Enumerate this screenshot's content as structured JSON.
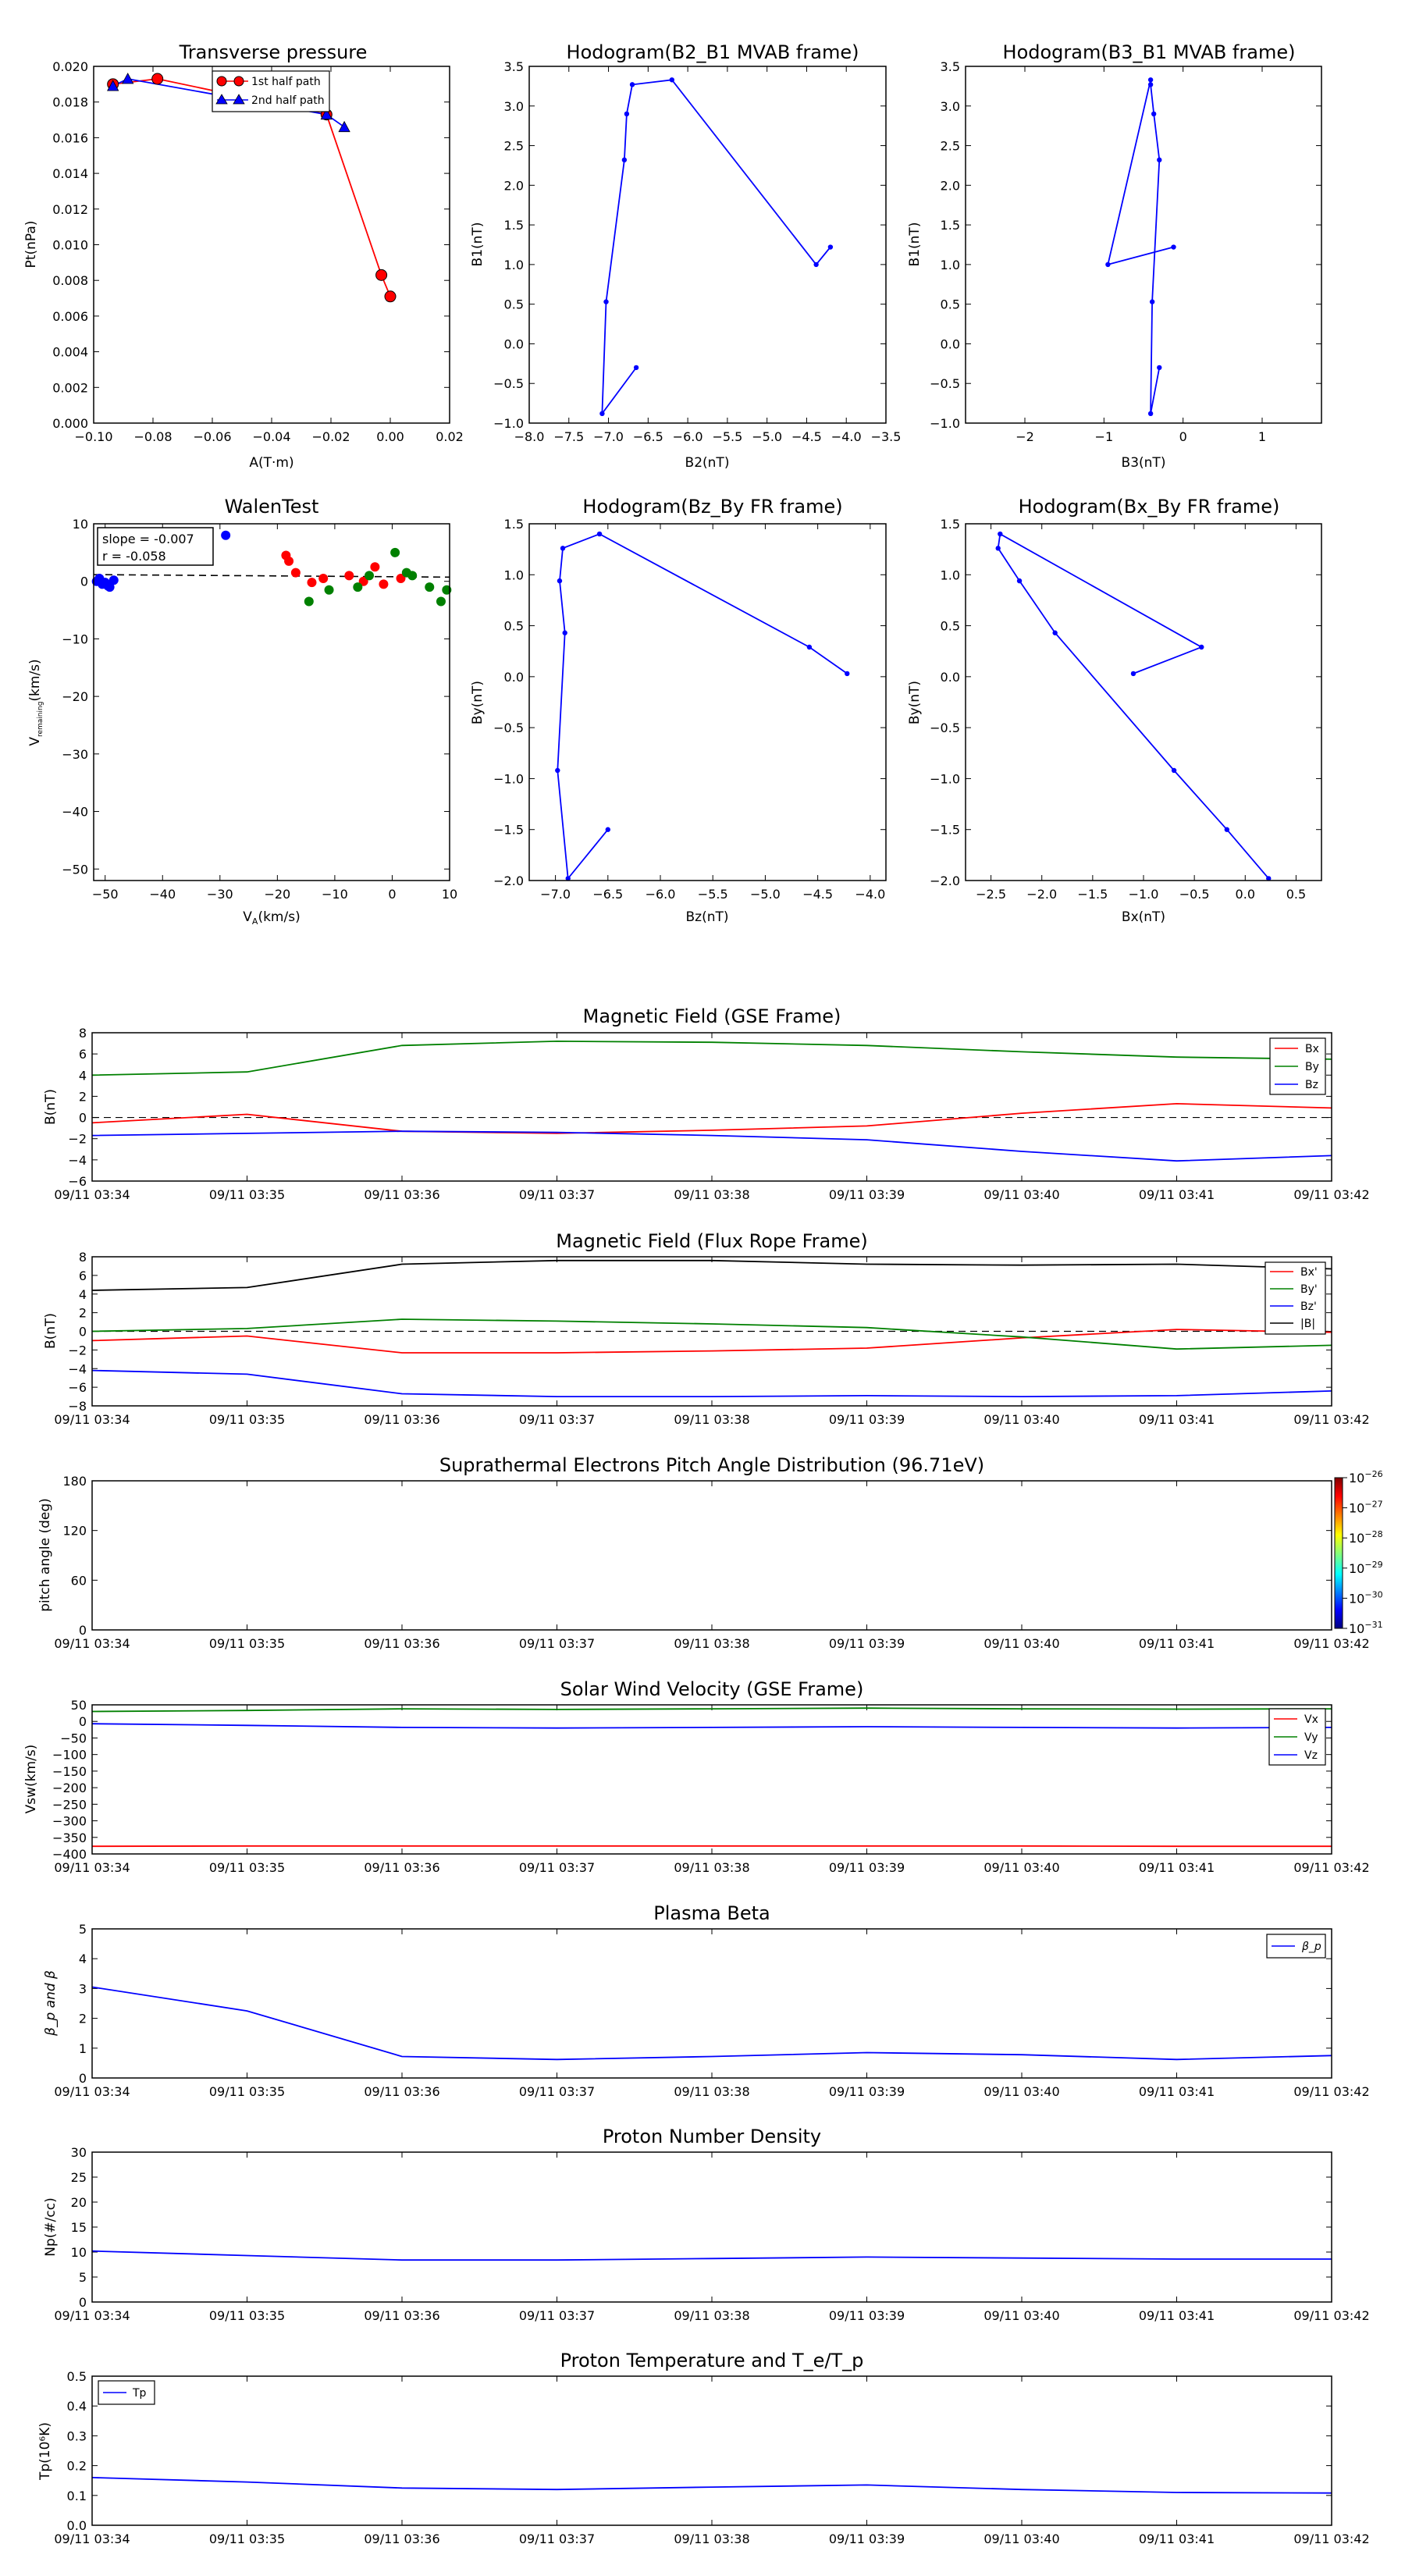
{
  "panels": {
    "transverse_pressure": {
      "title": "Transverse pressure",
      "xlabel": "A(T·m)",
      "ylabel": "Pt(nPa)",
      "xticks": [
        "−0.10",
        "−0.08",
        "−0.06",
        "−0.04",
        "−0.02",
        "0.00",
        "0.02"
      ],
      "yticks": [
        "0.000",
        "0.002",
        "0.004",
        "0.006",
        "0.008",
        "0.010",
        "0.012",
        "0.014",
        "0.016",
        "0.018",
        "0.020"
      ],
      "legend": [
        "1st half path",
        "2nd half path"
      ]
    },
    "hodo_b2b1": {
      "title": "Hodogram(B2_B1 MVAB frame)",
      "xlabel": "B2(nT)",
      "ylabel": "B1(nT)",
      "xticks": [
        "−8.0",
        "−7.5",
        "−7.0",
        "−6.5",
        "−6.0",
        "−5.5",
        "−5.0",
        "−4.5",
        "−4.0",
        "−3.5"
      ],
      "yticks": [
        "−1.0",
        "−0.5",
        "0.0",
        "0.5",
        "1.0",
        "1.5",
        "2.0",
        "2.5",
        "3.0",
        "3.5"
      ]
    },
    "hodo_b3b1": {
      "title": "Hodogram(B3_B1 MVAB frame)",
      "xlabel": "B3(nT)",
      "ylabel": "B1(nT)",
      "xticks": [
        "−2",
        "−1",
        "0",
        "1"
      ],
      "yticks": [
        "−1.0",
        "−0.5",
        "0.0",
        "0.5",
        "1.0",
        "1.5",
        "2.0",
        "2.5",
        "3.0",
        "3.5"
      ]
    },
    "walen": {
      "title": "WalenTest",
      "xlabel": "V",
      "xlabel_sub": "A",
      "xlabel_suffix": "(km/s)",
      "ylabel": "V",
      "ylabel_sub": "remaining",
      "ylabel_suffix": "(km/s)",
      "xticks": [
        "−50",
        "−40",
        "−30",
        "−20",
        "−10",
        "0",
        "10"
      ],
      "yticks": [
        "−50",
        "−40",
        "−30",
        "−20",
        "−10",
        "0",
        "10"
      ],
      "annot1": "slope = -0.007",
      "annot2": "r = -0.058"
    },
    "hodo_bzby": {
      "title": "Hodogram(Bz_By FR frame)",
      "xlabel": "Bz(nT)",
      "ylabel": "By(nT)",
      "xticks": [
        "−7.0",
        "−6.5",
        "−6.0",
        "−5.5",
        "−5.0",
        "−4.5",
        "−4.0"
      ],
      "yticks": [
        "−2.0",
        "−1.5",
        "−1.0",
        "−0.5",
        "0.0",
        "0.5",
        "1.0",
        "1.5"
      ]
    },
    "hodo_bxby": {
      "title": "Hodogram(Bx_By FR frame)",
      "xlabel": "Bx(nT)",
      "ylabel": "By(nT)",
      "xticks": [
        "−2.5",
        "−2.0",
        "−1.5",
        "−1.0",
        "−0.5",
        "0.0",
        "0.5"
      ],
      "yticks": [
        "−2.0",
        "−1.5",
        "−1.0",
        "−0.5",
        "0.0",
        "0.5",
        "1.0",
        "1.5"
      ]
    },
    "ts_times": [
      "09/11 03:34",
      "09/11 03:35",
      "09/11 03:36",
      "09/11 03:37",
      "09/11 03:38",
      "09/11 03:39",
      "09/11 03:40",
      "09/11 03:41",
      "09/11 03:42"
    ],
    "mag_gse": {
      "title": "Magnetic Field (GSE Frame)",
      "ylabel": "B(nT)",
      "yticks": [
        "−6",
        "−4",
        "−2",
        "0",
        "2",
        "4",
        "6",
        "8"
      ],
      "legend": [
        "Bx",
        "By",
        "Bz"
      ]
    },
    "mag_fr": {
      "title": "Magnetic Field (Flux Rope Frame)",
      "ylabel": "B(nT)",
      "yticks": [
        "−8",
        "−6",
        "−4",
        "−2",
        "0",
        "2",
        "4",
        "6",
        "8"
      ],
      "legend": [
        "Bx'",
        "By'",
        "Bz'",
        "|B|"
      ]
    },
    "pad": {
      "title": "Suprathermal Electrons Pitch Angle Distribution (96.71eV)",
      "ylabel": "pitch angle (deg)",
      "yticks": [
        "0",
        "60",
        "120",
        "180"
      ],
      "cbar_exps": [
        "-26",
        "-27",
        "-28",
        "-29",
        "-30",
        "-31"
      ]
    },
    "vsw": {
      "title": "Solar Wind Velocity (GSE Frame)",
      "ylabel": "Vsw(km/s)",
      "yticks": [
        "−400",
        "−350",
        "−300",
        "−250",
        "−200",
        "−150",
        "−100",
        "−50",
        "0",
        "50"
      ],
      "legend": [
        "Vx",
        "Vy",
        "Vz"
      ]
    },
    "beta": {
      "title": "Plasma Beta",
      "ylabel": "β_p and β",
      "yticks": [
        "0",
        "1",
        "2",
        "3",
        "4",
        "5"
      ],
      "legend": [
        "β_p"
      ]
    },
    "np": {
      "title": "Proton Number Density",
      "ylabel": "Np(#/cc)",
      "yticks": [
        "0",
        "5",
        "10",
        "15",
        "20",
        "25",
        "30"
      ]
    },
    "tp": {
      "title": "Proton Temperature and T_e/T_p",
      "ylabel": "Tp(10⁶K)",
      "yticks": [
        "0.0",
        "0.1",
        "0.2",
        "0.3",
        "0.4",
        "0.5"
      ],
      "legend": [
        "Tp"
      ]
    }
  },
  "colors": {
    "red": "#ff0000",
    "green": "#008000",
    "blue": "#0000ff",
    "black": "#000000"
  },
  "chart_data": [
    {
      "type": "line",
      "id": "transverse_pressure",
      "title": "Transverse pressure",
      "xlabel": "A(T·m)",
      "ylabel": "Pt(nPa)",
      "xlim": [
        -0.1,
        0.02
      ],
      "ylim": [
        0.0,
        0.02
      ],
      "series": [
        {
          "name": "1st half path",
          "x": [
            -0.0935,
            -0.0785,
            -0.0215,
            -0.003,
            0.0
          ],
          "y": [
            0.019,
            0.0193,
            0.0173,
            0.0083,
            0.0071
          ]
        },
        {
          "name": "2nd half path",
          "x": [
            -0.0935,
            -0.0885,
            -0.0215,
            -0.0155
          ],
          "y": [
            0.0189,
            0.0193,
            0.0173,
            0.0166
          ]
        }
      ]
    },
    {
      "type": "line",
      "id": "hodo_b2b1",
      "title": "Hodogram(B2_B1 MVAB frame)",
      "xlabel": "B2(nT)",
      "ylabel": "B1(nT)",
      "xlim": [
        -8.0,
        -3.5
      ],
      "ylim": [
        -1.0,
        3.5
      ],
      "x": [
        -6.65,
        -7.08,
        -7.03,
        -6.8,
        -6.77,
        -6.7,
        -6.2,
        -4.38,
        -4.2
      ],
      "y": [
        -0.3,
        -0.88,
        0.53,
        2.32,
        2.9,
        3.27,
        3.33,
        1.0,
        1.22
      ]
    },
    {
      "type": "line",
      "id": "hodo_b3b1",
      "title": "Hodogram(B3_B1 MVAB frame)",
      "xlabel": "B3(nT)",
      "ylabel": "B1(nT)",
      "xlim": [
        -2.75,
        1.75
      ],
      "ylim": [
        -1.0,
        3.5
      ],
      "x": [
        -0.3,
        -0.41,
        -0.39,
        -0.3,
        -0.37,
        -0.41,
        -0.41,
        -0.95,
        -0.12
      ],
      "y": [
        -0.3,
        -0.88,
        0.53,
        2.32,
        2.9,
        3.27,
        3.33,
        1.0,
        1.22
      ]
    },
    {
      "type": "scatter",
      "id": "walen",
      "title": "WalenTest",
      "xlim": [
        -52,
        10
      ],
      "ylim": [
        -52,
        10
      ],
      "fit_line": {
        "slope": -0.007,
        "intercept": 0.8
      },
      "series": [
        {
          "color": "blue",
          "x": [
            -51.5,
            -51.0,
            -50.5,
            -50.0,
            -49.5,
            -49.2,
            -48.5,
            -29.0
          ],
          "y": [
            0.0,
            0.5,
            -0.5,
            -0.2,
            -0.8,
            -1.0,
            0.2,
            8.0
          ]
        },
        {
          "color": "red",
          "x": [
            -18.5,
            -18.0,
            -16.8,
            -14.0,
            -12.0,
            -7.5,
            -5.0,
            -3.0,
            -1.5,
            1.5
          ],
          "y": [
            4.5,
            3.5,
            1.5,
            -0.2,
            0.5,
            1.0,
            0.0,
            2.5,
            -0.5,
            0.5
          ]
        },
        {
          "color": "green",
          "x": [
            -14.5,
            -11.0,
            -6.0,
            -4.0,
            0.5,
            2.5,
            3.5,
            6.5,
            8.5,
            9.5
          ],
          "y": [
            -3.5,
            -1.5,
            -1.0,
            1.0,
            5.0,
            1.5,
            1.0,
            -1.0,
            -3.5,
            -1.5
          ]
        }
      ]
    },
    {
      "type": "line",
      "id": "hodo_bzby",
      "title": "Hodogram(Bz_By FR frame)",
      "xlabel": "Bz(nT)",
      "ylabel": "By(nT)",
      "xlim": [
        -7.25,
        -3.85
      ],
      "ylim": [
        -2.0,
        1.5
      ],
      "x": [
        -6.5,
        -6.88,
        -6.98,
        -6.91,
        -6.96,
        -6.93,
        -6.58,
        -4.58,
        -4.22
      ],
      "y": [
        -1.5,
        -1.98,
        -0.92,
        0.43,
        0.94,
        1.26,
        1.4,
        0.29,
        0.03
      ]
    },
    {
      "type": "line",
      "id": "hodo_bxby",
      "title": "Hodogram(Bx_By FR frame)",
      "xlabel": "Bx(nT)",
      "ylabel": "By(nT)",
      "xlim": [
        -2.75,
        0.75
      ],
      "ylim": [
        -2.0,
        1.5
      ],
      "x": [
        0.23,
        -0.18,
        -0.7,
        -1.87,
        -2.22,
        -2.43,
        -2.41,
        -0.43,
        -1.1
      ],
      "y": [
        -1.98,
        -1.5,
        -0.92,
        0.43,
        0.94,
        1.26,
        1.4,
        0.29,
        0.03
      ]
    },
    {
      "type": "line",
      "id": "mag_gse",
      "title": "Magnetic Field (GSE Frame)",
      "ylabel": "B(nT)",
      "ylim": [
        -6,
        8
      ],
      "x_minutes": [
        0,
        1,
        2,
        3,
        4,
        5,
        6,
        7,
        8
      ],
      "zero_line": true,
      "series": [
        {
          "name": "Bx",
          "color": "red",
          "values": [
            -0.5,
            0.3,
            -1.3,
            -1.5,
            -1.2,
            -0.8,
            0.4,
            1.3,
            0.9
          ]
        },
        {
          "name": "By",
          "color": "green",
          "values": [
            4.0,
            4.3,
            6.8,
            7.2,
            7.1,
            6.8,
            6.2,
            5.7,
            5.5
          ]
        },
        {
          "name": "Bz",
          "color": "blue",
          "values": [
            -1.7,
            -1.5,
            -1.3,
            -1.4,
            -1.7,
            -2.1,
            -3.2,
            -4.1,
            -3.6
          ]
        }
      ]
    },
    {
      "type": "line",
      "id": "mag_fr",
      "title": "Magnetic Field (Flux Rope Frame)",
      "ylabel": "B(nT)",
      "ylim": [
        -8,
        8
      ],
      "x_minutes": [
        0,
        1,
        2,
        3,
        4,
        5,
        6,
        7,
        8
      ],
      "zero_line": true,
      "series": [
        {
          "name": "Bx'",
          "color": "red",
          "values": [
            -1.0,
            -0.5,
            -2.3,
            -2.3,
            -2.1,
            -1.8,
            -0.7,
            0.2,
            -0.1
          ]
        },
        {
          "name": "By'",
          "color": "green",
          "values": [
            0.0,
            0.3,
            1.3,
            1.1,
            0.8,
            0.4,
            -0.6,
            -1.9,
            -1.5
          ]
        },
        {
          "name": "Bz'",
          "color": "blue",
          "values": [
            -4.2,
            -4.6,
            -6.7,
            -7.0,
            -7.0,
            -6.9,
            -7.0,
            -6.9,
            -6.4
          ]
        },
        {
          "name": "|B|",
          "color": "black",
          "values": [
            4.4,
            4.7,
            7.2,
            7.6,
            7.6,
            7.2,
            7.1,
            7.2,
            6.7
          ]
        }
      ]
    },
    {
      "type": "heatmap",
      "id": "pad",
      "title": "Suprathermal Electrons Pitch Angle Distribution (96.71eV)",
      "ylabel": "pitch angle (deg)",
      "ylim": [
        0,
        180
      ],
      "values": [],
      "colorbar_range": [
        "1e-31",
        "1e-26"
      ]
    },
    {
      "type": "line",
      "id": "vsw",
      "title": "Solar Wind Velocity (GSE Frame)",
      "ylabel": "Vsw(km/s)",
      "ylim": [
        -400,
        50
      ],
      "x_minutes": [
        0,
        1,
        2,
        3,
        4,
        5,
        6,
        7,
        8
      ],
      "series": [
        {
          "name": "Vx",
          "color": "red",
          "values": [
            -377,
            -376,
            -376,
            -376,
            -376,
            -376,
            -376,
            -377,
            -377
          ]
        },
        {
          "name": "Vy",
          "color": "green",
          "values": [
            30,
            33,
            38,
            36,
            38,
            40,
            38,
            37,
            38
          ]
        },
        {
          "name": "Vz",
          "color": "blue",
          "values": [
            -7,
            -12,
            -18,
            -20,
            -18,
            -16,
            -18,
            -20,
            -18
          ]
        }
      ]
    },
    {
      "type": "line",
      "id": "beta",
      "title": "Plasma Beta",
      "ylabel": "β_p and β",
      "ylim": [
        0,
        5
      ],
      "x_minutes": [
        0,
        1,
        2,
        3,
        4,
        5,
        6,
        7,
        8
      ],
      "series": [
        {
          "name": "β_p",
          "color": "blue",
          "values": [
            3.05,
            2.25,
            0.72,
            0.62,
            0.72,
            0.85,
            0.78,
            0.62,
            0.75
          ]
        }
      ]
    },
    {
      "type": "line",
      "id": "np",
      "title": "Proton Number Density",
      "ylabel": "Np(#/cc)",
      "ylim": [
        0,
        30
      ],
      "x_minutes": [
        0,
        1,
        2,
        3,
        4,
        5,
        6,
        7,
        8
      ],
      "series": [
        {
          "name": "Np",
          "color": "blue",
          "values": [
            10.2,
            9.3,
            8.4,
            8.4,
            8.7,
            9.0,
            8.8,
            8.6,
            8.6
          ]
        }
      ]
    },
    {
      "type": "line",
      "id": "tp",
      "title": "Proton Temperature and T_e/T_p",
      "ylabel": "Tp(10⁶K)",
      "ylim": [
        0,
        0.5
      ],
      "x_minutes": [
        0,
        1,
        2,
        3,
        4,
        5,
        6,
        7,
        8
      ],
      "series": [
        {
          "name": "Tp",
          "color": "blue",
          "values": [
            0.16,
            0.145,
            0.125,
            0.12,
            0.128,
            0.135,
            0.12,
            0.11,
            0.108
          ]
        }
      ]
    }
  ]
}
